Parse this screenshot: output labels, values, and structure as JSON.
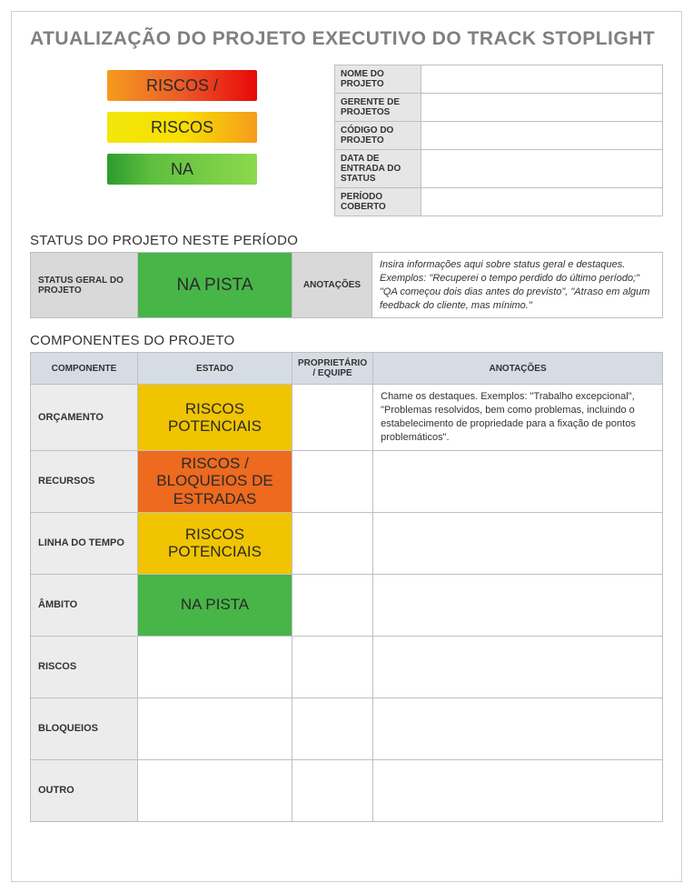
{
  "title": "ATUALIZAÇÃO DO PROJETO EXECUTIVO DO TRACK STOPLIGHT",
  "legend": [
    {
      "label": "RISCOS /",
      "gradient": "grad-orange-red"
    },
    {
      "label": "RISCOS",
      "gradient": "grad-yellow-orange"
    },
    {
      "label": "NA",
      "gradient": "grad-green"
    }
  ],
  "info_rows": [
    {
      "label": "NOME DO PROJETO",
      "value": ""
    },
    {
      "label": "GERENTE DE PROJETOS",
      "value": ""
    },
    {
      "label": "CÓDIGO DO PROJETO",
      "value": ""
    },
    {
      "label": "DATA DE ENTRADA DO STATUS",
      "value": ""
    },
    {
      "label": "PERÍODO COBERTO",
      "value": ""
    }
  ],
  "status_section_title": "STATUS DO PROJETO NESTE PERÍODO",
  "status": {
    "label": "STATUS GERAL DO PROJETO",
    "state_text": "NA PISTA",
    "state_color": "grad-green-flat",
    "anot_label": "ANOTAÇÕES",
    "anot_text": "Insira informações aqui sobre status geral e destaques. Exemplos: \"Recuperei o tempo perdido do último período;\" \"QA começou dois dias antes do previsto\", \"Atraso em algum feedback do cliente, mas mínimo.\""
  },
  "components_section_title": "COMPONENTES DO PROJETO",
  "components_headers": {
    "col1": "COMPONENTE",
    "col2": "ESTADO",
    "col3": "PROPRIETÁRIO / EQUIPE",
    "col4": "ANOTAÇÕES"
  },
  "components": [
    {
      "name": "ORÇAMENTO",
      "state_text": "RISCOS POTENCIAIS",
      "state_color": "grad-yellow-flat",
      "owner": "",
      "notes": "Chame os destaques. Exemplos: \"Trabalho excepcional\", \"Problemas resolvidos, bem como problemas, incluindo o estabelecimento de propriedade para a fixação de pontos problemáticos\"."
    },
    {
      "name": "RECURSOS",
      "state_text": "RISCOS / BLOQUEIOS DE ESTRADAS",
      "state_color": "grad-orange-flat",
      "owner": "",
      "notes": ""
    },
    {
      "name": "LINHA DO TEMPO",
      "state_text": "RISCOS POTENCIAIS",
      "state_color": "grad-yellow-flat",
      "owner": "",
      "notes": ""
    },
    {
      "name": "ÂMBITO",
      "state_text": "NA PISTA",
      "state_color": "grad-green-flat",
      "owner": "",
      "notes": ""
    },
    {
      "name": "RISCOS",
      "state_text": "",
      "state_color": "",
      "owner": "",
      "notes": ""
    },
    {
      "name": "BLOQUEIOS",
      "state_text": "",
      "state_color": "",
      "owner": "",
      "notes": ""
    },
    {
      "name": "OUTRO",
      "state_text": "",
      "state_color": "",
      "owner": "",
      "notes": ""
    }
  ],
  "colors": {
    "header_bg": "#d6dce4",
    "label_bg_dark": "#d9d9d9",
    "label_bg_light": "#ececec",
    "border": "#bfbfbf",
    "title_color": "#808080"
  }
}
